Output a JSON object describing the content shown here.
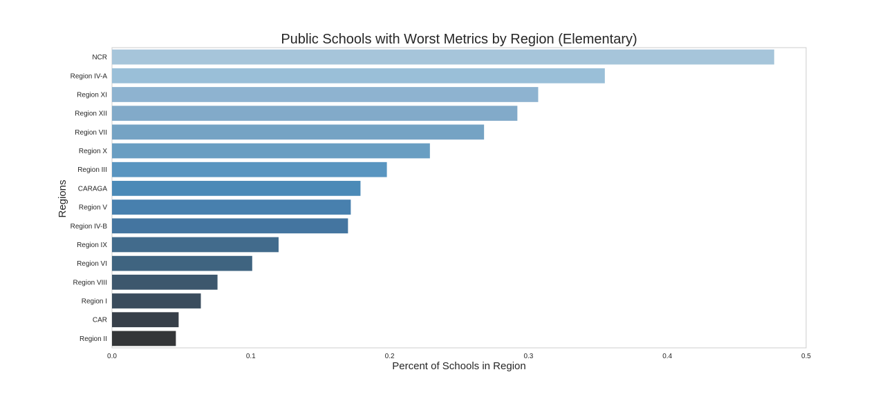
{
  "chart_data": {
    "type": "bar",
    "orientation": "horizontal",
    "title": "Public Schools with Worst Metrics by Region (Elementary)",
    "xlabel": "Percent of Schools in Region",
    "ylabel": "Regions",
    "xlim": [
      0,
      0.5
    ],
    "xticks": [
      "0.0",
      "0.1",
      "0.2",
      "0.3",
      "0.4",
      "0.5"
    ],
    "grid": false,
    "categories": [
      "NCR",
      "Region IV-A",
      "Region XI",
      "Region XII",
      "Region VII",
      "Region X",
      "Region III",
      "CARAGA",
      "Region V",
      "Region IV-B",
      "Region IX",
      "Region VI",
      "Region VIII",
      "Region I",
      "CAR",
      "Region II"
    ],
    "values": [
      0.477,
      0.355,
      0.307,
      0.292,
      0.268,
      0.229,
      0.198,
      0.179,
      0.172,
      0.17,
      0.12,
      0.101,
      0.076,
      0.064,
      0.048,
      0.046
    ],
    "colors": [
      "#a6c5da",
      "#9abfd8",
      "#8eb3d0",
      "#82aac9",
      "#75a3c4",
      "#699ec2",
      "#5995c0",
      "#4b8ab7",
      "#4880ae",
      "#4475a0",
      "#426b8c",
      "#3f6480",
      "#3d576d",
      "#3a4c5d",
      "#373f49",
      "#343638"
    ]
  }
}
